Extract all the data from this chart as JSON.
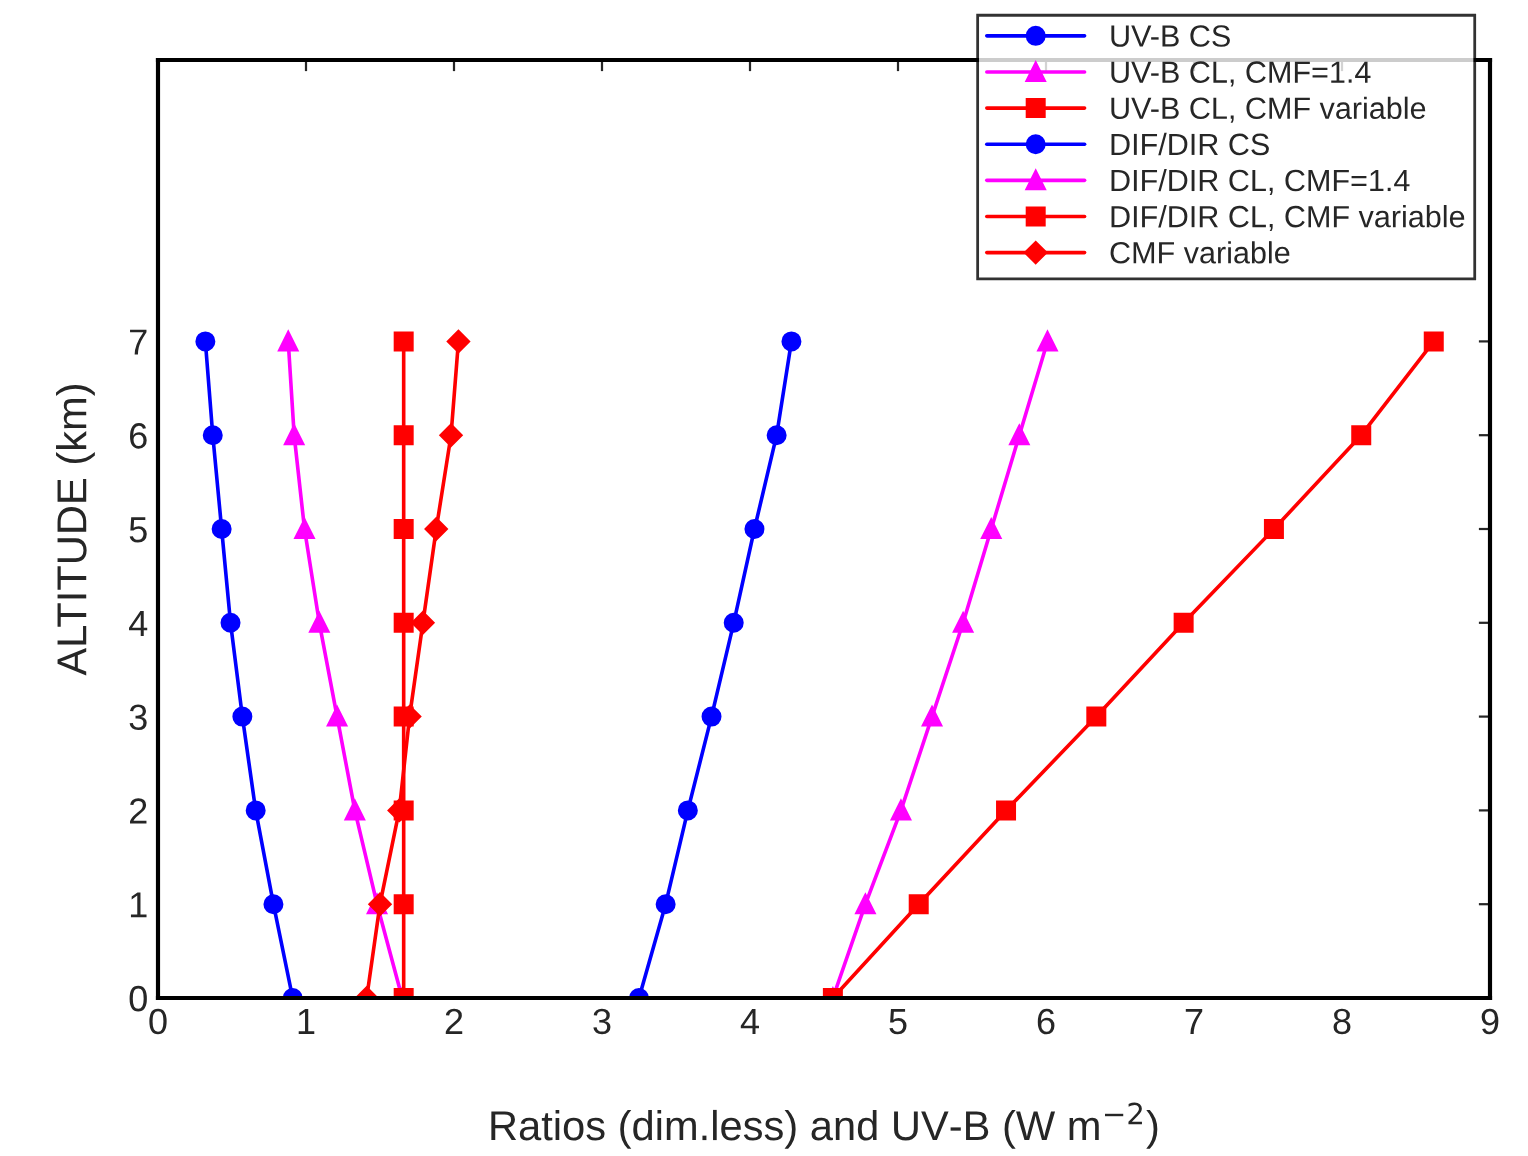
{
  "chart_data": {
    "type": "line",
    "xlabel": "Ratios (dim.less) and UV-B (W m$^{−2}$)",
    "ylabel": "ALTITUDE (km)",
    "xlim": [
      0,
      9
    ],
    "xticks": [
      0,
      1,
      2,
      3,
      4,
      5,
      6,
      7,
      8,
      9
    ],
    "ylim": [
      0,
      10
    ],
    "yticks": [
      0,
      1,
      2,
      3,
      4,
      5,
      6,
      7
    ],
    "grid": false,
    "legend": "top right",
    "line_style": "solid",
    "series": [
      {
        "name": "UV-B CS",
        "color": "#0000ff",
        "marker": "circle",
        "x": [
          3.25,
          3.43,
          3.58,
          3.74,
          3.89,
          4.03,
          4.18,
          4.28
        ],
        "values": [
          0,
          1,
          2,
          3,
          4,
          5,
          6,
          7
        ]
      },
      {
        "name": "UV-B CL, CMF=1.4",
        "color": "#ff00ff",
        "marker": "triangle",
        "x": [
          4.56,
          4.78,
          5.02,
          5.23,
          5.44,
          5.63,
          5.82,
          6.01
        ],
        "values": [
          0,
          1,
          2,
          3,
          4,
          5,
          6,
          7
        ]
      },
      {
        "name": "UV-B CL, CMF variable",
        "color": "#ff0000",
        "marker": "square",
        "x": [
          4.56,
          5.14,
          5.73,
          6.34,
          6.93,
          7.54,
          8.13,
          8.62
        ],
        "values": [
          0,
          1,
          2,
          3,
          4,
          5,
          6,
          7
        ]
      },
      {
        "name": "DIF/DIR CS",
        "color": "#0000ff",
        "marker": "circle",
        "x": [
          0.91,
          0.78,
          0.66,
          0.57,
          0.49,
          0.43,
          0.37,
          0.32
        ],
        "values": [
          0,
          1,
          2,
          3,
          4,
          5,
          6,
          7
        ]
      },
      {
        "name": "DIF/DIR CL, CMF=1.4",
        "color": "#ff00ff",
        "marker": "triangle",
        "x": [
          1.65,
          1.48,
          1.33,
          1.21,
          1.09,
          0.99,
          0.92,
          0.88
        ],
        "values": [
          0,
          1,
          2,
          3,
          4,
          5,
          6,
          7
        ]
      },
      {
        "name": "DIF/DIR CL, CMF variable",
        "color": "#ff0000",
        "marker": "square",
        "x": [
          1.66,
          1.66,
          1.66,
          1.66,
          1.66,
          1.66,
          1.66,
          1.66
        ],
        "values": [
          0,
          1,
          2,
          3,
          4,
          5,
          6,
          7
        ]
      },
      {
        "name": "CMF variable",
        "color": "#ff0000",
        "marker": "diamond",
        "x": [
          1.41,
          1.5,
          1.63,
          1.7,
          1.79,
          1.88,
          1.98,
          2.03
        ],
        "values": [
          0,
          1,
          2,
          3,
          4,
          5,
          6,
          7
        ]
      }
    ]
  }
}
